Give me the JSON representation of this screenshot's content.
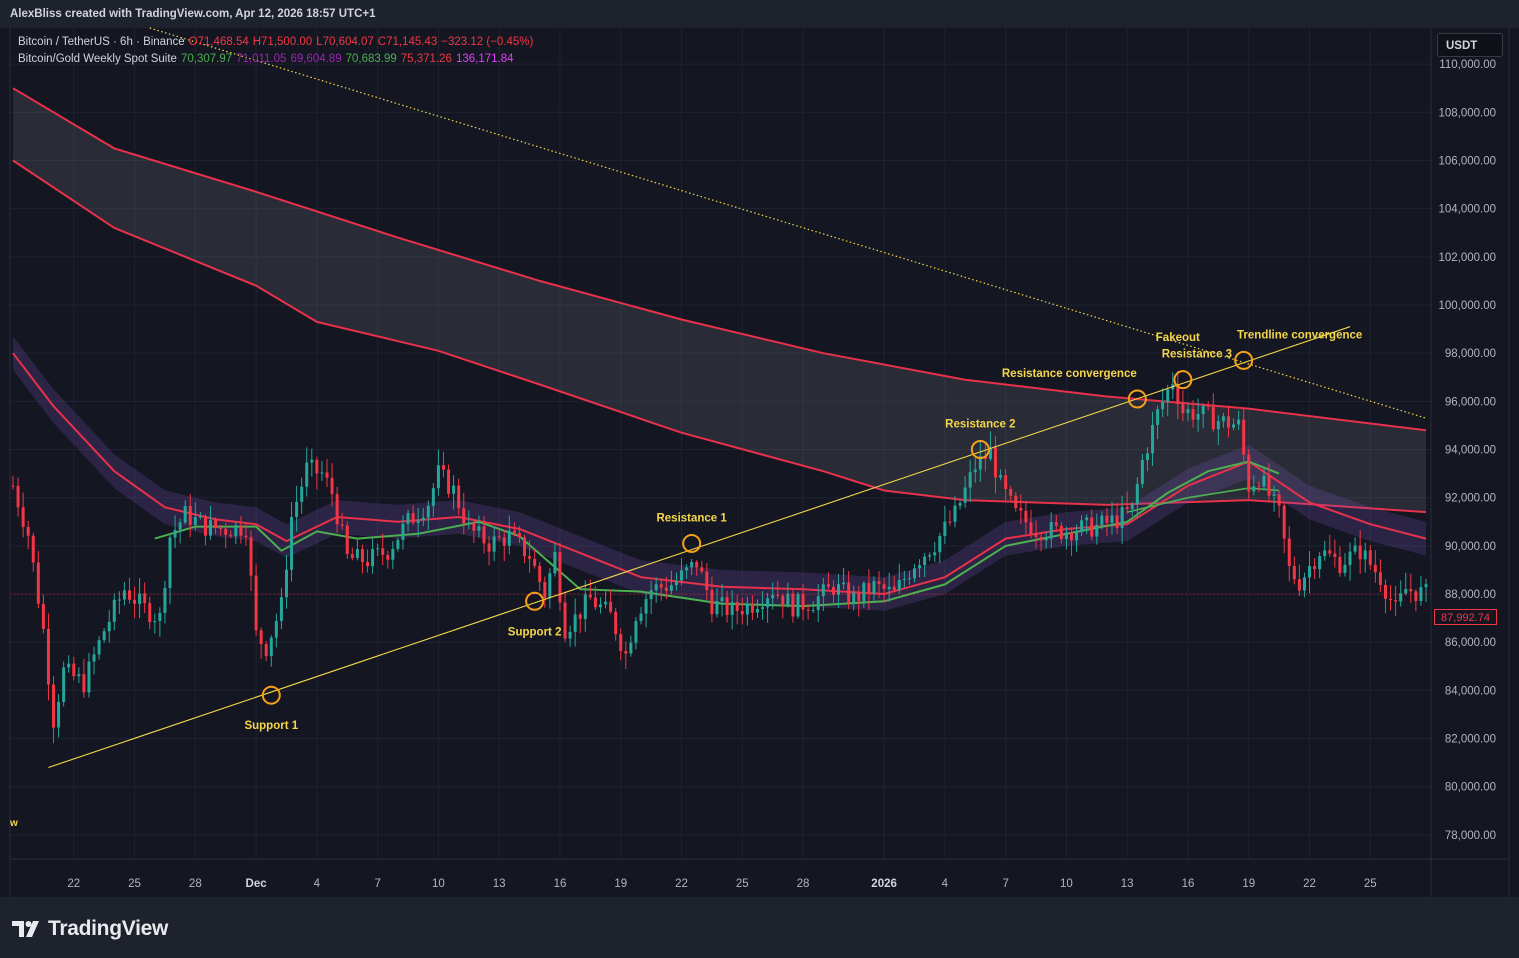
{
  "attribution": "AlexBliss created with TradingView.com, Apr 12, 2026 18:57 UTC+1",
  "brand": "TradingView",
  "currency_button": "USDT",
  "last_price_label": "87,992.74",
  "edge_label": "w",
  "legend": {
    "symbol": "Bitcoin / TetherUS · 6h · Binance",
    "open": "O71,468.54",
    "high": "H71,500.00",
    "low": "L70,604.07",
    "close": "C71,145.43",
    "change": "−323.12 (−0.45%)",
    "indicator": "Bitcoin/Gold Weekly Spot Suite",
    "indicator_values": [
      {
        "text": "70,307.97",
        "color": "#4caf50"
      },
      {
        "text": "71,011.05",
        "color": "#9c27b0"
      },
      {
        "text": "69,604.89",
        "color": "#9c27b0"
      },
      {
        "text": "70,683.99",
        "color": "#4caf50"
      },
      {
        "text": "75,371.26",
        "color": "#f23645"
      },
      {
        "text": "136,171.84",
        "color": "#e040fb"
      }
    ]
  },
  "colors": {
    "up": "#26a69a",
    "down": "#f23645",
    "ribbon_line": "#e8314a",
    "cloud": "rgba(120,123,134,0.22)",
    "band": "rgba(126,87,194,0.22)",
    "green_line": "#4caf50",
    "trendline": "#f5d64a",
    "marker": "#f7a11a",
    "annotation": "#f5d64a"
  },
  "chart_data": {
    "type": "candlestick",
    "interval": "6h",
    "y_axis": {
      "min": 77000,
      "max": 111500,
      "ticks": [
        78000,
        80000,
        82000,
        84000,
        86000,
        88000,
        90000,
        92000,
        94000,
        96000,
        98000,
        100000,
        102000,
        104000,
        106000,
        108000,
        110000
      ],
      "tick_labels": [
        "78,000.00",
        "80,000.00",
        "82,000.00",
        "84,000.00",
        "86,000.00",
        "88,000.00",
        "90,000.00",
        "92,000.00",
        "94,000.00",
        "96,000.00",
        "98,000.00",
        "100,000.00",
        "102,000.00",
        "104,000.00",
        "106,000.00",
        "108,000.00",
        "110,000.00"
      ]
    },
    "x_axis": {
      "start": "2025-11-19T00:00",
      "end": "2026-01-27T18:00",
      "ticks": [
        {
          "date": "2025-11-22",
          "label": "22"
        },
        {
          "date": "2025-11-25",
          "label": "25"
        },
        {
          "date": "2025-11-28",
          "label": "28"
        },
        {
          "date": "2025-12-01",
          "label": "Dec"
        },
        {
          "date": "2025-12-04",
          "label": "4"
        },
        {
          "date": "2025-12-07",
          "label": "7"
        },
        {
          "date": "2025-12-10",
          "label": "10"
        },
        {
          "date": "2025-12-13",
          "label": "13"
        },
        {
          "date": "2025-12-16",
          "label": "16"
        },
        {
          "date": "2025-12-19",
          "label": "19"
        },
        {
          "date": "2025-12-22",
          "label": "22"
        },
        {
          "date": "2025-12-25",
          "label": "25"
        },
        {
          "date": "2025-12-28",
          "label": "28"
        },
        {
          "date": "2026-01-01",
          "label": "2026"
        },
        {
          "date": "2026-01-04",
          "label": "4"
        },
        {
          "date": "2026-01-07",
          "label": "7"
        },
        {
          "date": "2026-01-10",
          "label": "10"
        },
        {
          "date": "2026-01-13",
          "label": "13"
        },
        {
          "date": "2026-01-16",
          "label": "16"
        },
        {
          "date": "2026-01-19",
          "label": "19"
        },
        {
          "date": "2026-01-22",
          "label": "22"
        },
        {
          "date": "2026-01-25",
          "label": "25"
        }
      ]
    },
    "close_anchors": [
      [
        "2025-11-19T00:00",
        92500
      ],
      [
        "2025-11-19T18:00",
        90500
      ],
      [
        "2025-11-20T12:00",
        86500
      ],
      [
        "2025-11-21T00:00",
        82800
      ],
      [
        "2025-11-21T12:00",
        84800
      ],
      [
        "2025-11-22T12:00",
        84300
      ],
      [
        "2025-11-23T12:00",
        86500
      ],
      [
        "2025-11-24T12:00",
        88200
      ],
      [
        "2025-11-25T12:00",
        87400
      ],
      [
        "2025-11-26T06:00",
        87000
      ],
      [
        "2025-11-26T18:00",
        90400
      ],
      [
        "2025-11-27T12:00",
        91300
      ],
      [
        "2025-11-28T12:00",
        90800
      ],
      [
        "2025-11-29T12:00",
        90700
      ],
      [
        "2025-11-30T12:00",
        90800
      ],
      [
        "2025-12-01T00:00",
        86300
      ],
      [
        "2025-12-01T12:00",
        85800
      ],
      [
        "2025-12-02T06:00",
        87500
      ],
      [
        "2025-12-02T18:00",
        91200
      ],
      [
        "2025-12-03T12:00",
        93200
      ],
      [
        "2025-12-04T06:00",
        93000
      ],
      [
        "2025-12-04T18:00",
        92200
      ],
      [
        "2025-12-05T12:00",
        89500
      ],
      [
        "2025-12-06T12:00",
        89400
      ],
      [
        "2025-12-07T12:00",
        89800
      ],
      [
        "2025-12-08T12:00",
        91000
      ],
      [
        "2025-12-09T12:00",
        91800
      ],
      [
        "2025-12-10T00:00",
        93000
      ],
      [
        "2025-12-10T18:00",
        92300
      ],
      [
        "2025-12-11T12:00",
        90700
      ],
      [
        "2025-12-12T12:00",
        90100
      ],
      [
        "2025-12-13T12:00",
        90400
      ],
      [
        "2025-12-14T12:00",
        89600
      ],
      [
        "2025-12-15T06:00",
        88000
      ],
      [
        "2025-12-15T18:00",
        89600
      ],
      [
        "2025-12-16T06:00",
        86600
      ],
      [
        "2025-12-16T18:00",
        87000
      ],
      [
        "2025-12-17T12:00",
        87800
      ],
      [
        "2025-12-18T12:00",
        87100
      ],
      [
        "2025-12-19T06:00",
        85500
      ],
      [
        "2025-12-19T18:00",
        87200
      ],
      [
        "2025-12-20T12:00",
        88200
      ],
      [
        "2025-12-21T12:00",
        88400
      ],
      [
        "2025-12-22T06:00",
        88900
      ],
      [
        "2025-12-22T18:00",
        89300
      ],
      [
        "2025-12-23T12:00",
        87600
      ],
      [
        "2025-12-24T12:00",
        87300
      ],
      [
        "2025-12-25T12:00",
        87600
      ],
      [
        "2025-12-26T12:00",
        88200
      ],
      [
        "2025-12-27T12:00",
        87500
      ],
      [
        "2025-12-28T12:00",
        87700
      ],
      [
        "2025-12-29T12:00",
        88300
      ],
      [
        "2025-12-30T12:00",
        87800
      ],
      [
        "2025-12-31T12:00",
        88300
      ],
      [
        "2026-01-01T12:00",
        88000
      ],
      [
        "2026-01-02T12:00",
        89300
      ],
      [
        "2026-01-03T12:00",
        90100
      ],
      [
        "2026-01-04T12:00",
        91300
      ],
      [
        "2026-01-05T12:00",
        93300
      ],
      [
        "2026-01-06T06:00",
        93900
      ],
      [
        "2026-01-06T18:00",
        92500
      ],
      [
        "2026-01-07T12:00",
        91300
      ],
      [
        "2026-01-08T12:00",
        90700
      ],
      [
        "2026-01-09T12:00",
        90600
      ],
      [
        "2026-01-10T12:00",
        90700
      ],
      [
        "2026-01-11T12:00",
        90800
      ],
      [
        "2026-01-12T12:00",
        91100
      ],
      [
        "2026-01-13T06:00",
        91500
      ],
      [
        "2026-01-13T18:00",
        93500
      ],
      [
        "2026-01-14T12:00",
        95500
      ],
      [
        "2026-01-15T06:00",
        96900
      ],
      [
        "2026-01-15T18:00",
        95600
      ],
      [
        "2026-01-16T12:00",
        95500
      ],
      [
        "2026-01-17T12:00",
        95200
      ],
      [
        "2026-01-18T12:00",
        95000
      ],
      [
        "2026-01-19T00:00",
        92500
      ],
      [
        "2026-01-19T12:00",
        92900
      ],
      [
        "2026-01-20T12:00",
        91300
      ],
      [
        "2026-01-21T00:00",
        89000
      ],
      [
        "2026-01-21T12:00",
        88500
      ],
      [
        "2026-01-22T12:00",
        89800
      ],
      [
        "2026-01-23T12:00",
        89300
      ],
      [
        "2026-01-24T12:00",
        89800
      ],
      [
        "2026-01-25T12:00",
        88700
      ],
      [
        "2026-01-26T06:00",
        87300
      ],
      [
        "2026-01-26T18:00",
        88200
      ],
      [
        "2026-01-27T18:00",
        87993
      ]
    ],
    "overlays": {
      "cloud_upper": [
        [
          "2025-11-19T00:00",
          109000
        ],
        [
          "2025-11-24T00:00",
          106500
        ],
        [
          "2025-12-01T00:00",
          104700
        ],
        [
          "2025-12-08T00:00",
          102800
        ],
        [
          "2025-12-15T00:00",
          101000
        ],
        [
          "2025-12-22T00:00",
          99400
        ],
        [
          "2025-12-29T00:00",
          98000
        ],
        [
          "2026-01-05T00:00",
          96900
        ],
        [
          "2026-01-12T00:00",
          96200
        ],
        [
          "2026-01-19T00:00",
          95700
        ],
        [
          "2026-01-27T18:00",
          94800
        ]
      ],
      "cloud_lower": [
        [
          "2025-11-19T00:00",
          106000
        ],
        [
          "2025-11-24T00:00",
          103200
        ],
        [
          "2025-12-01T00:00",
          100800
        ],
        [
          "2025-12-04T00:00",
          99300
        ],
        [
          "2025-12-10T00:00",
          98100
        ],
        [
          "2025-12-15T00:00",
          96700
        ],
        [
          "2025-12-22T00:00",
          94700
        ],
        [
          "2025-12-29T00:00",
          93100
        ],
        [
          "2026-01-01T00:00",
          92300
        ],
        [
          "2026-01-05T00:00",
          91900
        ],
        [
          "2026-01-12T00:00",
          91700
        ],
        [
          "2026-01-19T00:00",
          91900
        ],
        [
          "2026-01-27T18:00",
          91400
        ]
      ],
      "mid_line": [
        [
          "2025-11-19T00:00",
          98000
        ],
        [
          "2025-11-21T00:00",
          95800
        ],
        [
          "2025-11-24T00:00",
          93100
        ],
        [
          "2025-11-26T12:00",
          91600
        ],
        [
          "2025-11-29T00:00",
          91100
        ],
        [
          "2025-12-01T00:00",
          90900
        ],
        [
          "2025-12-02T12:00",
          90200
        ],
        [
          "2025-12-05T00:00",
          91200
        ],
        [
          "2025-12-08T00:00",
          91000
        ],
        [
          "2025-12-11T00:00",
          91200
        ],
        [
          "2025-12-14T00:00",
          90700
        ],
        [
          "2025-12-17T00:00",
          89700
        ],
        [
          "2025-12-20T00:00",
          88700
        ],
        [
          "2025-12-24T00:00",
          88300
        ],
        [
          "2025-12-28T00:00",
          88200
        ],
        [
          "2026-01-01T00:00",
          88000
        ],
        [
          "2026-01-04T00:00",
          88700
        ],
        [
          "2026-01-07T00:00",
          90300
        ],
        [
          "2026-01-10T00:00",
          90700
        ],
        [
          "2026-01-13T00:00",
          90900
        ],
        [
          "2026-01-16T00:00",
          92500
        ],
        [
          "2026-01-19T00:00",
          93500
        ],
        [
          "2026-01-22T00:00",
          91800
        ],
        [
          "2026-01-25T00:00",
          90900
        ],
        [
          "2026-01-27T18:00",
          90300
        ]
      ],
      "band_halfwidth": 700,
      "green_line": [
        [
          "2025-11-26T00:00",
          90300
        ],
        [
          "2025-11-28T00:00",
          90800
        ],
        [
          "2025-12-01T00:00",
          90800
        ],
        [
          "2025-12-02T06:00",
          89800
        ],
        [
          "2025-12-04T00:00",
          90600
        ],
        [
          "2025-12-06T00:00",
          90300
        ],
        [
          "2025-12-09T00:00",
          90500
        ],
        [
          "2025-12-12T00:00",
          91000
        ],
        [
          "2025-12-14T00:00",
          90400
        ],
        [
          "2025-12-17T00:00",
          88200
        ],
        [
          "2025-12-20T00:00",
          88100
        ],
        [
          "2025-12-24T00:00",
          87600
        ],
        [
          "2025-12-28T00:00",
          87500
        ],
        [
          "2026-01-01T00:00",
          87700
        ],
        [
          "2026-01-04T00:00",
          88400
        ],
        [
          "2026-01-07T00:00",
          90000
        ],
        [
          "2026-01-10T00:00",
          90500
        ],
        [
          "2026-01-13T00:00",
          91000
        ],
        [
          "2026-01-15T00:00",
          92200
        ],
        [
          "2026-01-17T00:00",
          93100
        ],
        [
          "2026-01-19T00:00",
          93500
        ],
        [
          "2026-01-20T12:00",
          93000
        ]
      ],
      "green_line2": [
        [
          "2026-01-13T00:00",
          91400
        ],
        [
          "2026-01-16T00:00",
          92000
        ],
        [
          "2026-01-19T00:00",
          92400
        ],
        [
          "2026-01-20T12:00",
          92300
        ]
      ]
    },
    "trendlines": [
      {
        "style": "solid",
        "from": [
          "2025-11-20T18:00",
          80800
        ],
        "to": [
          "2026-01-24T00:00",
          99100
        ]
      },
      {
        "style": "dotted",
        "from": [
          "2025-11-25T18:00",
          111500
        ],
        "to": [
          "2026-01-27T18:00",
          95300
        ]
      }
    ],
    "annotations": [
      {
        "text": "Support 1",
        "date": "2025-12-01T18:00",
        "price": 83800,
        "label_pos": "below"
      },
      {
        "text": "Support 2",
        "date": "2025-12-14T18:00",
        "price": 87700,
        "label_pos": "below"
      },
      {
        "text": "Resistance 1",
        "date": "2025-12-22T12:00",
        "price": 90100,
        "label_pos": "above"
      },
      {
        "text": "Resistance 2",
        "date": "2026-01-05T18:00",
        "price": 94000,
        "label_pos": "above"
      },
      {
        "text": "Resistance convergence",
        "date": "2026-01-13T12:00",
        "price": 96100,
        "label_pos": "above"
      },
      {
        "text": "Resistance 3",
        "date": "2026-01-15T18:00",
        "price": 96900,
        "label_pos": "above"
      },
      {
        "text": "Trendline convergence",
        "date": "2026-01-18T18:00",
        "price": 97700,
        "label_pos": "above"
      },
      {
        "text": "Fakeout",
        "date": "2026-01-15T12:00",
        "price": 98500,
        "label_pos": "text-only"
      }
    ],
    "last_price": 87992.74
  }
}
